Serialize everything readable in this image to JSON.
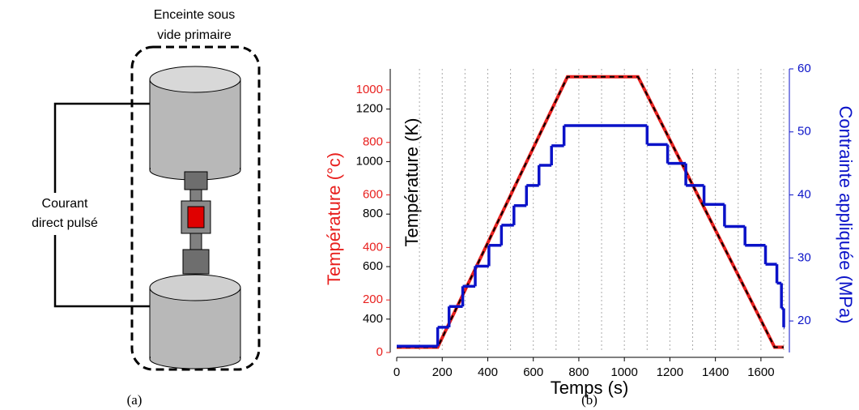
{
  "diagram": {
    "enclosure_label": [
      "Enceinte sous",
      "vide primaire"
    ],
    "current_label": [
      "Courant",
      "direct pulsé"
    ],
    "caption": "(a)"
  },
  "chart_data": {
    "type": "line",
    "caption": "(b)",
    "x_label": "Temps (s)",
    "y_label": "Température (°c)",
    "yk_label": "Température (K)",
    "y2_label": "Contrainte appliquée (MPa)",
    "xlim": [
      0,
      1700
    ],
    "xticks": [
      0,
      200,
      400,
      600,
      800,
      1000,
      1200,
      1400,
      1600
    ],
    "xgrid": [
      100,
      200,
      300,
      400,
      500,
      600,
      700,
      800,
      900,
      1000,
      1100,
      1200,
      1300,
      1400,
      1500,
      1600,
      1700
    ],
    "ylim": [
      0,
      1080
    ],
    "yticks": [
      0,
      200,
      400,
      600,
      800,
      1000
    ],
    "yklim": [
      273,
      1353
    ],
    "ykticks": [
      400,
      600,
      800,
      1000,
      1200
    ],
    "y2lim": [
      15,
      60
    ],
    "y2ticks": [
      20,
      30,
      40,
      50,
      60
    ],
    "series": [
      {
        "name": "Température (°c)",
        "color": "#e8201e",
        "axis": "y",
        "x": [
          0,
          180,
          750,
          1060,
          1660,
          1700
        ],
        "values": [
          20,
          20,
          1050,
          1050,
          20,
          20
        ]
      },
      {
        "name": "Température (K)",
        "color": "#000000",
        "axis": "yk",
        "dashed": true,
        "x": [
          0,
          180,
          750,
          1060,
          1660,
          1700
        ],
        "values": [
          293,
          293,
          1323,
          1323,
          293,
          293
        ]
      },
      {
        "name": "Contrainte appliquée (MPa)",
        "color": "#0a12c8",
        "axis": "y2",
        "step": true,
        "x": [
          0,
          180,
          230,
          290,
          345,
          405,
          460,
          515,
          570,
          625,
          680,
          735,
          1100,
          1190,
          1270,
          1350,
          1440,
          1530,
          1620,
          1670,
          1690,
          1700
        ],
        "values": [
          16,
          19,
          22.3,
          25.5,
          28.7,
          32,
          35.2,
          38.3,
          41.5,
          44.7,
          47.8,
          51,
          48,
          45,
          41.5,
          38.5,
          35,
          32,
          29,
          26,
          22,
          19
        ]
      }
    ]
  }
}
